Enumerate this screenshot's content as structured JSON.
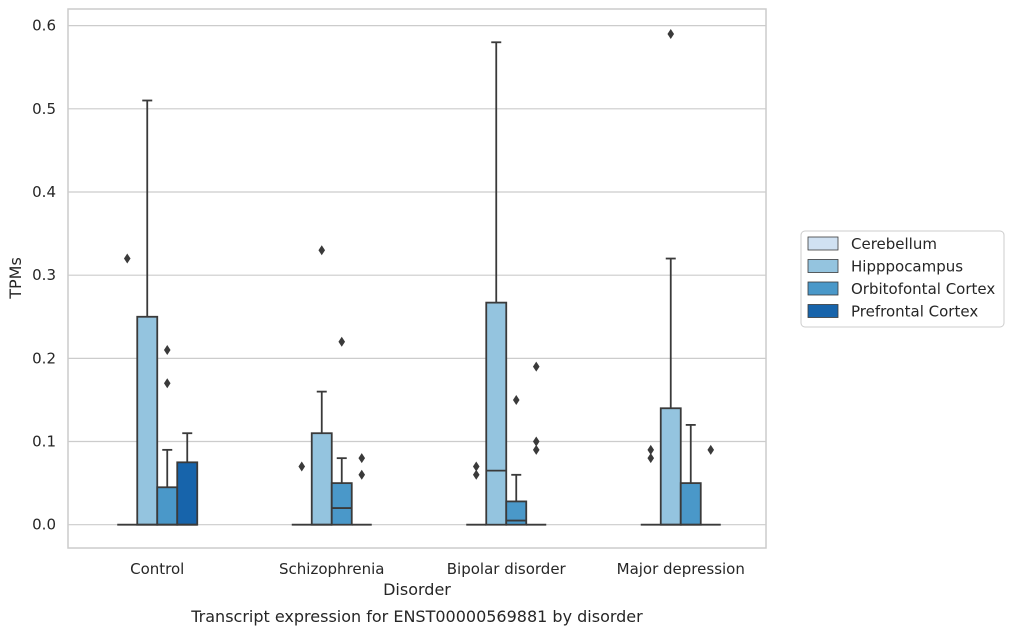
{
  "caption": "Transcript expression for ENST00000569881 by disorder",
  "chart_data": {
    "type": "boxplot",
    "title": "",
    "xlabel": "Disorder",
    "ylabel": "TPMs",
    "ylim": [
      -0.028,
      0.62
    ],
    "yticks": [
      "0.0",
      "0.1",
      "0.2",
      "0.3",
      "0.4",
      "0.5",
      "0.6"
    ],
    "grid": "horizontal",
    "legend_position": "right",
    "categories": [
      "Control",
      "Schizophrenia",
      "Bipolar disorder",
      "Major depression"
    ],
    "series": [
      {
        "name": "Cerebellum",
        "color": "#d0e1f2",
        "boxes": [
          {
            "q1": 0,
            "median": 0,
            "q3": 0,
            "whisker_low": 0,
            "whisker_high": 0,
            "outliers": [
              0.32
            ]
          },
          {
            "q1": 0,
            "median": 0,
            "q3": 0,
            "whisker_low": 0,
            "whisker_high": 0,
            "outliers": [
              0.07
            ]
          },
          {
            "q1": 0,
            "median": 0,
            "q3": 0,
            "whisker_low": 0,
            "whisker_high": 0,
            "outliers": [
              0.06,
              0.07
            ]
          },
          {
            "q1": 0,
            "median": 0,
            "q3": 0,
            "whisker_low": 0,
            "whisker_high": 0,
            "outliers": [
              0.08,
              0.09
            ]
          }
        ]
      },
      {
        "name": "Hipppocampus",
        "color": "#94c4df",
        "boxes": [
          {
            "q1": 0,
            "median": 0,
            "q3": 0.25,
            "whisker_low": 0,
            "whisker_high": 0.51,
            "outliers": []
          },
          {
            "q1": 0,
            "median": 0,
            "q3": 0.11,
            "whisker_low": 0,
            "whisker_high": 0.16,
            "outliers": [
              0.33
            ]
          },
          {
            "q1": 0,
            "median": 0.065,
            "q3": 0.267,
            "whisker_low": 0,
            "whisker_high": 0.58,
            "outliers": []
          },
          {
            "q1": 0,
            "median": 0,
            "q3": 0.14,
            "whisker_low": 0,
            "whisker_high": 0.32,
            "outliers": [
              0.59
            ]
          }
        ]
      },
      {
        "name": "Orbitofontal Cortex",
        "color": "#4a98c9",
        "boxes": [
          {
            "q1": 0,
            "median": 0,
            "q3": 0.045,
            "whisker_low": 0,
            "whisker_high": 0.09,
            "outliers": [
              0.17,
              0.21
            ]
          },
          {
            "q1": 0,
            "median": 0.02,
            "q3": 0.05,
            "whisker_low": 0,
            "whisker_high": 0.08,
            "outliers": [
              0.22
            ]
          },
          {
            "q1": 0,
            "median": 0.005,
            "q3": 0.028,
            "whisker_low": 0,
            "whisker_high": 0.06,
            "outliers": [
              0.15
            ]
          },
          {
            "q1": 0,
            "median": 0,
            "q3": 0.05,
            "whisker_low": 0,
            "whisker_high": 0.12,
            "outliers": []
          }
        ]
      },
      {
        "name": "Prefrontal Cortex",
        "color": "#1764ab",
        "boxes": [
          {
            "q1": 0,
            "median": 0,
            "q3": 0.075,
            "whisker_low": 0,
            "whisker_high": 0.11,
            "outliers": []
          },
          {
            "q1": 0,
            "median": 0,
            "q3": 0,
            "whisker_low": 0,
            "whisker_high": 0,
            "outliers": [
              0.06,
              0.08
            ]
          },
          {
            "q1": 0,
            "median": 0,
            "q3": 0,
            "whisker_low": 0,
            "whisker_high": 0,
            "outliers": [
              0.09,
              0.1,
              0.19
            ]
          },
          {
            "q1": 0,
            "median": 0,
            "q3": 0,
            "whisker_low": 0,
            "whisker_high": 0,
            "outliers": [
              0.09
            ]
          }
        ]
      }
    ],
    "colors": {
      "frame": "#cccccc",
      "grid": "#cccccc",
      "line": "#3a3a3a",
      "outlier": "#3a3a3a"
    }
  }
}
